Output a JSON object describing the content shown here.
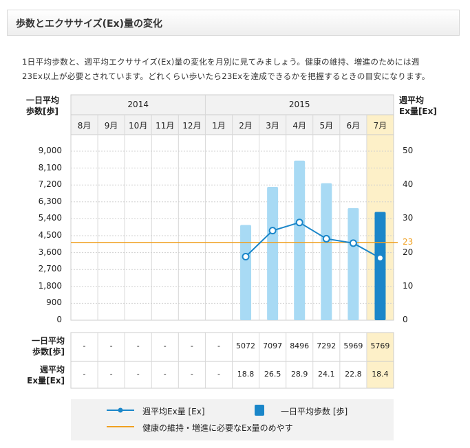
{
  "header": {
    "title": "歩数とエクササイズ(Ex)量の変化"
  },
  "intro": {
    "line1": "1日平均歩数と、週平均エクササイズ(Ex)量の変化を月別に見てみましょう。健康の維持、増進のためには週",
    "line2": "23Ex以上が必要とされています。どれくらい歩いたら23Exを達成できるかを把握するときの目安になります。"
  },
  "colors": {
    "bar": "#a8daf4",
    "bar_current": "#1a86c9",
    "line": "#1a86c9",
    "target": "#f0a020",
    "current_bg": "#fdf0c8"
  },
  "chart_data": {
    "type": "bar",
    "years": [
      {
        "label": "2014"
      },
      {
        "label": "2015"
      }
    ],
    "categories": [
      "8月",
      "9月",
      "10月",
      "11月",
      "12月",
      "1月",
      "2月",
      "3月",
      "4月",
      "5月",
      "6月",
      "7月"
    ],
    "highlight_index": 11,
    "left_axis": {
      "title_line1": "一日平均",
      "title_line2": "歩数[歩]",
      "ticks": [
        "9,000",
        "8,100",
        "7,200",
        "6,300",
        "5,400",
        "4,500",
        "3,600",
        "2,700",
        "1,800",
        "900",
        "0"
      ],
      "ylim": [
        0,
        9000
      ]
    },
    "right_axis": {
      "title_line1": "週平均",
      "title_line2": "Ex量[Ex]",
      "ticks": [
        "50",
        "40",
        "30",
        "20",
        "10",
        "0"
      ],
      "ylim": [
        0,
        50
      ],
      "target_label": "23"
    },
    "target": 23,
    "series": [
      {
        "name": "一日平均歩数 [歩]",
        "type": "bar",
        "values": [
          null,
          null,
          null,
          null,
          null,
          null,
          5072,
          7097,
          8496,
          7292,
          5969,
          5769
        ]
      },
      {
        "name": "週平均Ex量 [Ex]",
        "type": "line",
        "values": [
          null,
          null,
          null,
          null,
          null,
          null,
          18.8,
          26.5,
          28.9,
          24.1,
          22.8,
          18.4
        ]
      }
    ]
  },
  "table": {
    "row1_label_line1": "一日平均",
    "row1_label_line2": "歩数[歩]",
    "row2_label_line1": "週平均",
    "row2_label_line2": "Ex量[Ex]",
    "row1": [
      "-",
      "-",
      "-",
      "-",
      "-",
      "-",
      "5072",
      "7097",
      "8496",
      "7292",
      "5969",
      "5769"
    ],
    "row2": [
      "-",
      "-",
      "-",
      "-",
      "-",
      "-",
      "18.8",
      "26.5",
      "28.9",
      "24.1",
      "22.8",
      "18.4"
    ]
  },
  "legend": {
    "line_label": "週平均Ex量 [Ex]",
    "bar_label": "一日平均歩数 [歩]",
    "target_label": "健康の維持・増進に必要なEx量のめやす"
  }
}
